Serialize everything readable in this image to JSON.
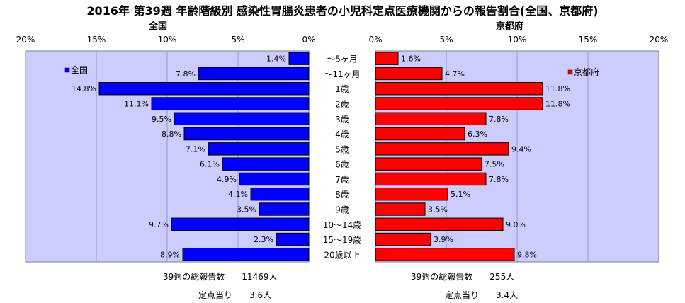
{
  "title": "2016年 第39週 年齢階級別 感染性胃腸炎患者の小児科定点医療機関からの報告割合(全国、京都府)",
  "chart_data": {
    "type": "bar",
    "categories": [
      "～5ヶ月",
      "～11ヶ月",
      "1歳",
      "2歳",
      "3歳",
      "4歳",
      "5歳",
      "6歳",
      "7歳",
      "8歳",
      "9歳",
      "10～14歳",
      "15～19歳",
      "20歳以上"
    ],
    "xlim": [
      0,
      20
    ],
    "xticks": [
      "0%",
      "5%",
      "10%",
      "15%",
      "20%"
    ],
    "panels": [
      {
        "title": "全国",
        "legend": "全国",
        "color": "#0000ff",
        "values": [
          1.4,
          7.8,
          14.8,
          11.1,
          9.5,
          8.8,
          7.1,
          6.1,
          4.9,
          4.1,
          3.5,
          9.7,
          2.3,
          8.9
        ],
        "labels": [
          "1.4%",
          "7.8%",
          "14.8%",
          "11.1%",
          "9.5%",
          "8.8%",
          "7.1%",
          "6.1%",
          "4.9%",
          "4.1%",
          "3.5%",
          "9.7%",
          "2.3%",
          "8.9%"
        ],
        "footer": {
          "total_label": "39週の総報告数",
          "total_value": "11469人",
          "per_label": "定点当り",
          "per_value": "3.6人"
        }
      },
      {
        "title": "京都府",
        "legend": "京都府",
        "color": "#ff0000",
        "values": [
          1.6,
          4.7,
          11.8,
          11.8,
          7.8,
          6.3,
          9.4,
          7.5,
          7.8,
          5.1,
          3.5,
          9.0,
          3.9,
          9.8
        ],
        "labels": [
          "1.6%",
          "4.7%",
          "11.8%",
          "11.8%",
          "7.8%",
          "6.3%",
          "9.4%",
          "7.5%",
          "7.8%",
          "5.1%",
          "3.5%",
          "9.0%",
          "3.9%",
          "9.8%"
        ],
        "footer": {
          "total_label": "39週の総報告数",
          "total_value": "255人",
          "per_label": "定点当り",
          "per_value": "3.4人"
        }
      }
    ]
  }
}
